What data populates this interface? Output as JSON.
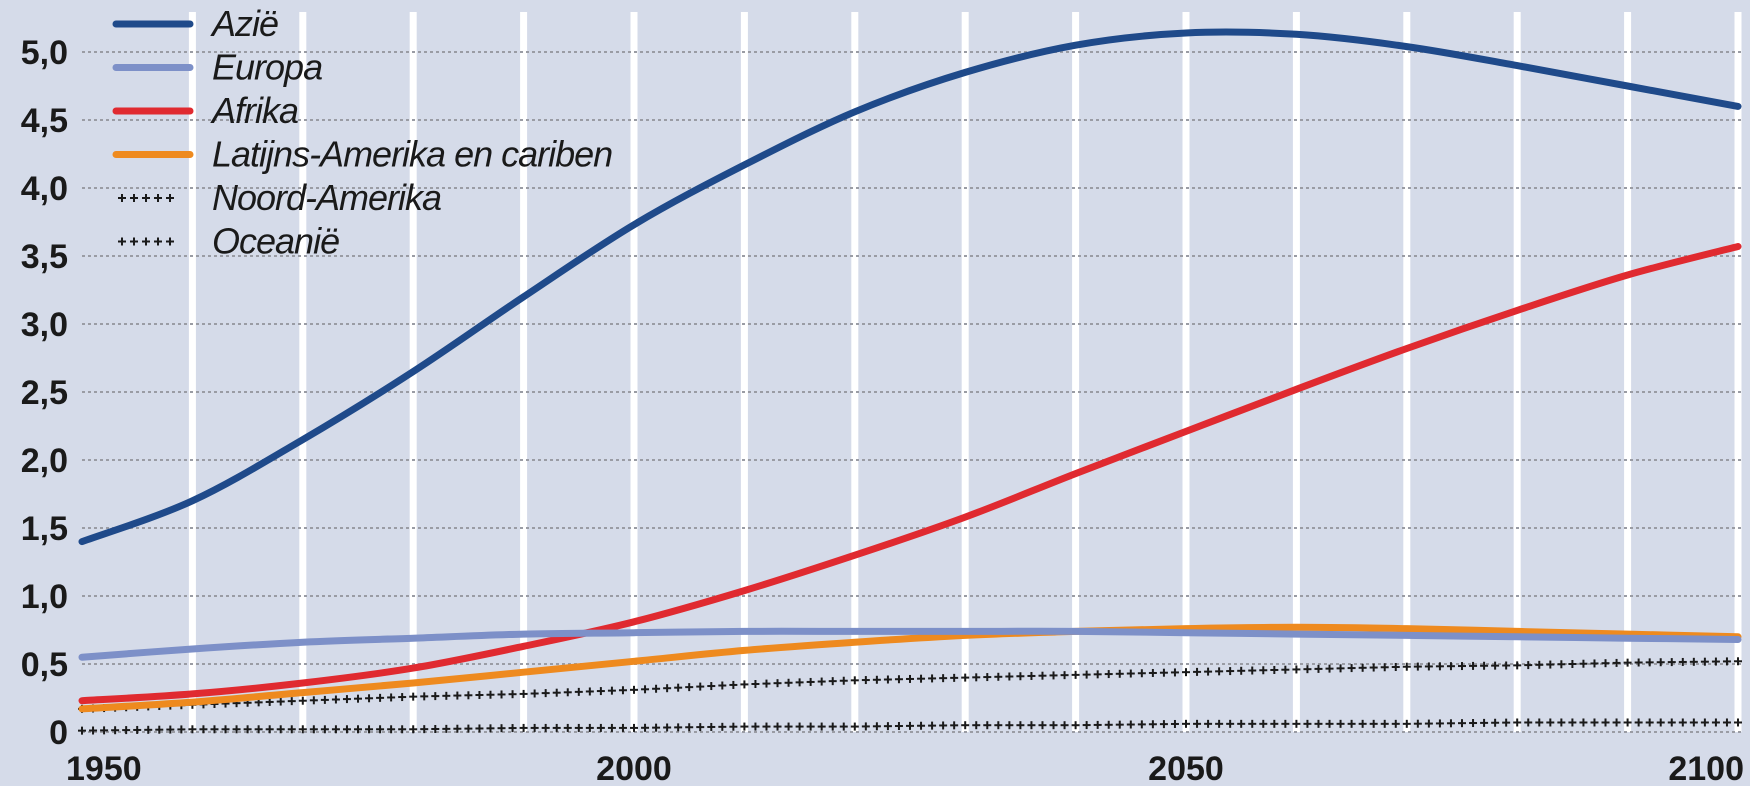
{
  "chart_data": {
    "type": "line",
    "title": "",
    "xlabel": "",
    "ylabel": "",
    "xlim": [
      1950,
      2100
    ],
    "ylim": [
      0,
      5.0
    ],
    "grid": true,
    "legend_position": "top-left",
    "colors": {
      "background": "#d5dbe9",
      "horizontal_grid": "#9a9ca4",
      "vertical_grid": "#ffffff"
    },
    "x_ticks": [
      {
        "value": 1950,
        "label": "1950"
      },
      {
        "value": 2000,
        "label": "2000"
      },
      {
        "value": 2050,
        "label": "2050"
      },
      {
        "value": 2100,
        "label": "2100"
      }
    ],
    "y_ticks": [
      {
        "value": 0,
        "label": "0"
      },
      {
        "value": 0.5,
        "label": "0,5"
      },
      {
        "value": 1.0,
        "label": "1,0"
      },
      {
        "value": 1.5,
        "label": "1,5"
      },
      {
        "value": 2.0,
        "label": "2,0"
      },
      {
        "value": 2.5,
        "label": "2,5"
      },
      {
        "value": 3.0,
        "label": "3,0"
      },
      {
        "value": 3.5,
        "label": "3,5"
      },
      {
        "value": 4.0,
        "label": "4,0"
      },
      {
        "value": 4.5,
        "label": "4,5"
      },
      {
        "value": 5.0,
        "label": "5,0"
      }
    ],
    "series": [
      {
        "name": "Azië",
        "color": "#1f4a8a",
        "style": "solid",
        "points": [
          [
            1950,
            1.4
          ],
          [
            1960,
            1.7
          ],
          [
            1970,
            2.15
          ],
          [
            1980,
            2.65
          ],
          [
            1990,
            3.2
          ],
          [
            2000,
            3.73
          ],
          [
            2010,
            4.17
          ],
          [
            2020,
            4.56
          ],
          [
            2030,
            4.85
          ],
          [
            2040,
            5.05
          ],
          [
            2050,
            5.14
          ],
          [
            2060,
            5.13
          ],
          [
            2070,
            5.04
          ],
          [
            2080,
            4.9
          ],
          [
            2090,
            4.75
          ],
          [
            2100,
            4.6
          ]
        ]
      },
      {
        "name": "Europa",
        "color": "#7d90c8",
        "style": "solid",
        "points": [
          [
            1950,
            0.55
          ],
          [
            1960,
            0.61
          ],
          [
            1970,
            0.66
          ],
          [
            1980,
            0.69
          ],
          [
            1990,
            0.72
          ],
          [
            2000,
            0.73
          ],
          [
            2010,
            0.74
          ],
          [
            2020,
            0.74
          ],
          [
            2030,
            0.74
          ],
          [
            2040,
            0.74
          ],
          [
            2050,
            0.73
          ],
          [
            2060,
            0.72
          ],
          [
            2070,
            0.71
          ],
          [
            2080,
            0.7
          ],
          [
            2090,
            0.69
          ],
          [
            2100,
            0.68
          ]
        ]
      },
      {
        "name": "Afrika",
        "color": "#e02a30",
        "style": "solid",
        "points": [
          [
            1950,
            0.23
          ],
          [
            1960,
            0.28
          ],
          [
            1970,
            0.36
          ],
          [
            1980,
            0.47
          ],
          [
            1990,
            0.63
          ],
          [
            2000,
            0.81
          ],
          [
            2010,
            1.04
          ],
          [
            2020,
            1.3
          ],
          [
            2030,
            1.58
          ],
          [
            2040,
            1.9
          ],
          [
            2050,
            2.21
          ],
          [
            2060,
            2.52
          ],
          [
            2070,
            2.82
          ],
          [
            2080,
            3.1
          ],
          [
            2090,
            3.36
          ],
          [
            2100,
            3.57
          ]
        ]
      },
      {
        "name": "Latijns-Amerika en cariben",
        "color": "#ee8a1f",
        "style": "solid",
        "points": [
          [
            1950,
            0.17
          ],
          [
            1960,
            0.22
          ],
          [
            1970,
            0.29
          ],
          [
            1980,
            0.36
          ],
          [
            1990,
            0.44
          ],
          [
            2000,
            0.52
          ],
          [
            2010,
            0.6
          ],
          [
            2020,
            0.66
          ],
          [
            2030,
            0.71
          ],
          [
            2040,
            0.74
          ],
          [
            2050,
            0.76
          ],
          [
            2060,
            0.77
          ],
          [
            2070,
            0.76
          ],
          [
            2080,
            0.74
          ],
          [
            2090,
            0.72
          ],
          [
            2100,
            0.7
          ]
        ]
      },
      {
        "name": "Noord-Amerika",
        "color": "#1a1a1a",
        "style": "crosses",
        "points": [
          [
            1950,
            0.17
          ],
          [
            1960,
            0.2
          ],
          [
            1970,
            0.23
          ],
          [
            1980,
            0.26
          ],
          [
            1990,
            0.28
          ],
          [
            2000,
            0.31
          ],
          [
            2010,
            0.35
          ],
          [
            2020,
            0.38
          ],
          [
            2030,
            0.4
          ],
          [
            2040,
            0.42
          ],
          [
            2050,
            0.44
          ],
          [
            2060,
            0.46
          ],
          [
            2070,
            0.48
          ],
          [
            2080,
            0.49
          ],
          [
            2090,
            0.51
          ],
          [
            2100,
            0.52
          ]
        ]
      },
      {
        "name": "Oceanië",
        "color": "#1a1a1a",
        "style": "crosses",
        "points": [
          [
            1950,
            0.01
          ],
          [
            1960,
            0.02
          ],
          [
            1970,
            0.02
          ],
          [
            1980,
            0.02
          ],
          [
            1990,
            0.03
          ],
          [
            2000,
            0.03
          ],
          [
            2010,
            0.04
          ],
          [
            2020,
            0.04
          ],
          [
            2030,
            0.05
          ],
          [
            2040,
            0.05
          ],
          [
            2050,
            0.06
          ],
          [
            2060,
            0.06
          ],
          [
            2070,
            0.06
          ],
          [
            2080,
            0.07
          ],
          [
            2090,
            0.07
          ],
          [
            2100,
            0.07
          ]
        ]
      }
    ]
  }
}
